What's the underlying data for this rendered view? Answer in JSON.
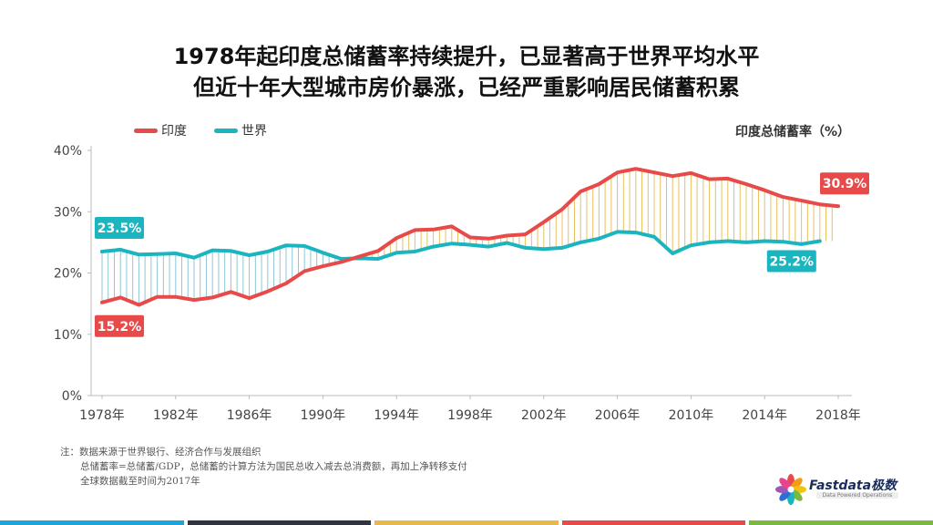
{
  "title_line1": "1978年起印度总储蓄率持续提升，已显著高于世界平均水平",
  "title_line2": "但近十年大型城市房价暴涨，已经严重影响居民储蓄积累",
  "legend": {
    "india": "印度",
    "world": "世界"
  },
  "unit_label": "印度总储蓄率（%）",
  "notes": [
    "注：数据来源于世界银行、经济合作与发展组织",
    "总储蓄率=总储蓄/GDP，总储蓄的计算方法为国民总收入减去总消费额，再加上净转移支付",
    "全球数据截至时间为2017年"
  ],
  "logo": {
    "name": "Fastdata极数",
    "tagline": "Data Powered Operations"
  },
  "colors": {
    "india": "#e84a4a",
    "world": "#1bb5c0",
    "fill_india": "#e8c060",
    "fill_world": "#8ec6d8",
    "axis": "#bbbbbb"
  },
  "bottom_bar_colors": [
    "#1aa6d8",
    "#2f3440",
    "#e8b84a",
    "#e84a4a",
    "#79b940"
  ],
  "chart_data": {
    "type": "line",
    "x": [
      1978,
      1979,
      1980,
      1981,
      1982,
      1983,
      1984,
      1985,
      1986,
      1987,
      1988,
      1989,
      1990,
      1991,
      1992,
      1993,
      1994,
      1995,
      1996,
      1997,
      1998,
      1999,
      2000,
      2001,
      2002,
      2003,
      2004,
      2005,
      2006,
      2007,
      2008,
      2009,
      2010,
      2011,
      2012,
      2013,
      2014,
      2015,
      2016,
      2017,
      2018
    ],
    "series": [
      {
        "name": "印度",
        "values": [
          15.2,
          16.0,
          14.8,
          16.1,
          16.1,
          15.6,
          16.0,
          16.9,
          15.9,
          17.0,
          18.3,
          20.3,
          21.1,
          21.8,
          22.7,
          23.6,
          25.7,
          27.0,
          27.1,
          27.6,
          25.8,
          25.6,
          26.1,
          26.3,
          28.3,
          30.4,
          33.3,
          34.5,
          36.4,
          37.0,
          36.4,
          35.8,
          36.3,
          35.3,
          35.4,
          34.5,
          33.5,
          32.4,
          31.8,
          31.2,
          30.9
        ]
      },
      {
        "name": "世界",
        "values": [
          23.5,
          23.8,
          23.0,
          23.1,
          23.2,
          22.5,
          23.7,
          23.6,
          22.9,
          23.5,
          24.5,
          24.4,
          23.3,
          22.3,
          22.4,
          22.3,
          23.3,
          23.5,
          24.3,
          24.8,
          24.6,
          24.3,
          24.9,
          24.1,
          23.9,
          24.1,
          25.0,
          25.6,
          26.7,
          26.6,
          25.9,
          23.2,
          24.5,
          25.0,
          25.2,
          25.0,
          25.2,
          25.1,
          24.7,
          25.2,
          null
        ]
      }
    ],
    "data_labels": [
      {
        "series": "印度",
        "x": 1978,
        "text": "15.2%"
      },
      {
        "series": "世界",
        "x": 1978,
        "text": "23.5%"
      },
      {
        "series": "印度",
        "x": 2018,
        "text": "30.9%"
      },
      {
        "series": "世界",
        "x": 2017,
        "text": "25.2%"
      }
    ],
    "yticks": [
      "0%",
      "10%",
      "20%",
      "30%",
      "40%"
    ],
    "ylim": [
      0,
      40
    ],
    "xticks": [
      "1978年",
      "1982年",
      "1986年",
      "1990年",
      "1994年",
      "1998年",
      "2002年",
      "2006年",
      "2010年",
      "2014年",
      "2018年"
    ],
    "xtick_years": [
      1978,
      1982,
      1986,
      1990,
      1994,
      1998,
      2002,
      2006,
      2010,
      2014,
      2018
    ],
    "grid": false,
    "legend_position": "top-left"
  }
}
